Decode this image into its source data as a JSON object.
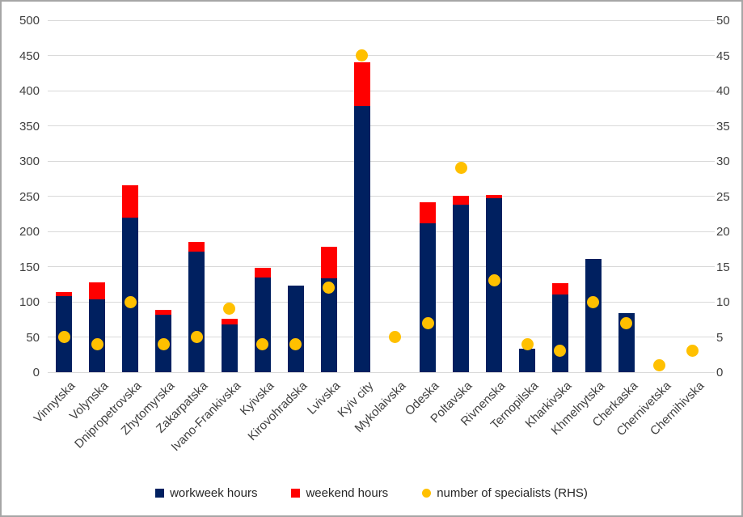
{
  "chart_data": {
    "type": "bar",
    "subtype": "stacked-bars-with-scatter-overlay",
    "title": "",
    "categories": [
      "Vinnytska",
      "Volynska",
      "Dnipropetrovska",
      "Zhytomyrska",
      "Zakarpatska",
      "Ivano-Frankivska",
      "Kyivska",
      "Kirovohradska",
      "Lvivska",
      "Kyiv city",
      "Mykolaivska",
      "Odeska",
      "Poltavska",
      "Rivnenska",
      "Ternopilska",
      "Kharkivska",
      "Khmelnytska",
      "Cherkaska",
      "Chernivetska",
      "Chernihivska"
    ],
    "series": [
      {
        "name": "workweek hours",
        "type": "bar",
        "stack": "hours",
        "axis": "left",
        "color": "#002060",
        "values": [
          108,
          104,
          220,
          82,
          171,
          68,
          134,
          123,
          133,
          378,
          0,
          211,
          238,
          247,
          33,
          110,
          161,
          84,
          0,
          0
        ]
      },
      {
        "name": "weekend hours",
        "type": "bar",
        "stack": "hours",
        "axis": "left",
        "color": "#ff0000",
        "values": [
          6,
          24,
          46,
          7,
          14,
          8,
          14,
          0,
          45,
          62,
          0,
          30,
          13,
          5,
          0,
          17,
          0,
          0,
          0,
          0
        ]
      },
      {
        "name": "number of specialists (RHS)",
        "type": "scatter",
        "axis": "right",
        "color": "#ffc000",
        "values": [
          5,
          4,
          10,
          4,
          5,
          9,
          4,
          4,
          12,
          45,
          5,
          7,
          29,
          13,
          4,
          3,
          10,
          7,
          1,
          3
        ]
      }
    ],
    "left_axis": {
      "min": 0,
      "max": 500,
      "step": 50,
      "tick_labels": [
        "500",
        "450",
        "400",
        "350",
        "300",
        "250",
        "200",
        "150",
        "100",
        "50",
        "0"
      ]
    },
    "right_axis": {
      "min": 0,
      "max": 50,
      "step": 5,
      "tick_labels": [
        "50",
        "45",
        "40",
        "35",
        "30",
        "25",
        "20",
        "15",
        "10",
        "5",
        "0"
      ]
    },
    "grid": true,
    "legend_position": "bottom",
    "colors": {
      "gridline": "#d9d9d9",
      "axis_text": "#404040",
      "background": "#ffffff",
      "frame_border": "#a6a6a6"
    }
  }
}
